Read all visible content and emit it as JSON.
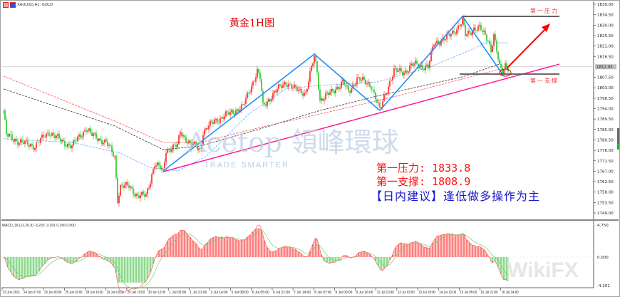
{
  "window": {
    "symbol_label": "XAUUSD,H1: GOLD"
  },
  "title": "黄金1H图",
  "annotations": {
    "resistance_label": "第一压力",
    "support_label": "第一支撑",
    "resistance_text": "第一压力: 1833.8",
    "support_text": "第一支撑: 1808.9",
    "advice_text": "【日内建议】逢低做多操作为主",
    "resistance_price": 1833.8,
    "support_price": 1808.9
  },
  "watermarks": {
    "brand": "Acetop 領峰環球",
    "tagline": "TRADE SMARTER",
    "wikifx": "WikiFX"
  },
  "colors": {
    "bull": "#ff0000",
    "bear": "#00c000",
    "zigzag": "#1e90ff",
    "trendline": "#ff1493",
    "arrow": "#ff0000",
    "ma_fast": "#6fa8ff",
    "ma_mid": "#333333",
    "ma_slow": "#ff5050"
  },
  "chart_data": [
    {
      "type": "candlestick",
      "title": "",
      "ylim": [
        1749.0,
        1839.0
      ],
      "y_ticks": [
        "1839.00",
        "1834.50",
        "1830.00",
        "1825.50",
        "1821.00",
        "1816.50",
        "1807.50",
        "1803.00",
        "1798.50",
        "1794.00",
        "1789.50",
        "1785.00",
        "1780.50",
        "1776.00",
        "1771.50",
        "1767.00",
        "1762.50",
        "1758.00",
        "1753.50",
        "1749.00"
      ],
      "current_price_label": "1812.05",
      "x_ticks": [
        "23 Jun 2021",
        "24 Jun 07:00",
        "25 Jun 00:00",
        "25 Jun 16:00",
        "28 Jun 10:00",
        "29 Jun 03:00",
        "29 Jun 19:00",
        "30 Jun 12:00",
        "1 Jul 05:00",
        "1 Jul 21:00",
        "2 Jul 14:00",
        "5 Jul 08:00",
        "6 Jul 05:00",
        "6 Jul 21:00",
        "7 Jul 14:00",
        "8 Jul 07:00",
        "9 Jul 00:00",
        "9 Jul 16:00",
        "12 Jul 10:00",
        "13 Jul 03:00",
        "13 Jul 19:00",
        "14 Jul 12:00",
        "15 Jul 05:00",
        "15 Jul 21:00",
        "16 Jul 14:00"
      ],
      "close_path": [
        [
          0,
          1793.2
        ],
        [
          1,
          1782.5
        ],
        [
          6,
          1779.4
        ],
        [
          11,
          1777.9
        ],
        [
          16,
          1784.0
        ],
        [
          21,
          1779.4
        ],
        [
          24,
          1777.9
        ],
        [
          29,
          1785.6
        ],
        [
          31,
          1782.5
        ],
        [
          36,
          1779.4
        ],
        [
          39,
          1773.3
        ],
        [
          40,
          1754.9
        ],
        [
          41,
          1760.5
        ],
        [
          44,
          1760.5
        ],
        [
          47,
          1756.4
        ],
        [
          50,
          1756.4
        ],
        [
          53,
          1770.2
        ],
        [
          56,
          1767.1
        ],
        [
          57,
          1776.3
        ],
        [
          61,
          1777.9
        ],
        [
          62,
          1784.0
        ],
        [
          65,
          1779.4
        ],
        [
          69,
          1776.3
        ],
        [
          70,
          1784.0
        ],
        [
          74,
          1788.6
        ],
        [
          79,
          1791.7
        ],
        [
          84,
          1794.8
        ],
        [
          89,
          1810.1
        ],
        [
          90,
          1807.1
        ],
        [
          91,
          1794.8
        ],
        [
          95,
          1800.9
        ],
        [
          99,
          1805.5
        ],
        [
          102,
          1802.5
        ],
        [
          106,
          1800.9
        ],
        [
          109,
          1816.3
        ],
        [
          110,
          1810.1
        ],
        [
          111,
          1797.8
        ],
        [
          115,
          1800.9
        ],
        [
          119,
          1805.5
        ],
        [
          121,
          1800.9
        ],
        [
          124,
          1807.1
        ],
        [
          129,
          1804.0
        ],
        [
          132,
          1793.2
        ],
        [
          134,
          1800.9
        ],
        [
          137,
          1810.1
        ],
        [
          141,
          1810.1
        ],
        [
          144,
          1813.2
        ],
        [
          149,
          1811.7
        ],
        [
          151,
          1822.4
        ],
        [
          155,
          1824.0
        ],
        [
          159,
          1828.6
        ],
        [
          161,
          1831.6
        ],
        [
          162,
          1825.5
        ],
        [
          165,
          1828.6
        ],
        [
          167,
          1828.6
        ],
        [
          170,
          1824.0
        ],
        [
          171,
          1819.3
        ],
        [
          172,
          1825.5
        ],
        [
          174,
          1811.7
        ],
        [
          175,
          1810.1
        ],
        [
          176,
          1813.2
        ],
        [
          177,
          1811.7
        ]
      ],
      "moving_averages": [
        {
          "color_key": "ma_fast",
          "points": [
            [
              0,
              1781.0
            ],
            [
              24,
              1779.4
            ],
            [
              41,
              1774.8
            ],
            [
              51,
              1768.7
            ],
            [
              61,
              1767.1
            ],
            [
              71,
              1773.3
            ],
            [
              86,
              1791.7
            ],
            [
              99,
              1802.5
            ],
            [
              111,
              1804.0
            ],
            [
              131,
              1805.5
            ],
            [
              149,
              1811.7
            ],
            [
              164,
              1819.3
            ],
            [
              169,
              1822.4
            ],
            [
              177,
              1822.4
            ]
          ]
        },
        {
          "color_key": "ma_mid",
          "points": [
            [
              0,
              1802.5
            ],
            [
              39,
              1786.5
            ],
            [
              56,
              1776.3
            ],
            [
              69,
              1777.9
            ],
            [
              89,
              1784.9
            ],
            [
              111,
              1793.2
            ],
            [
              131,
              1799.4
            ],
            [
              161,
              1807.7
            ],
            [
              174,
              1813.2
            ]
          ]
        },
        {
          "color_key": "ma_slow",
          "points": [
            [
              0,
              1808.0
            ],
            [
              39,
              1788.6
            ],
            [
              56,
              1779.4
            ],
            [
              69,
              1779.4
            ],
            [
              89,
              1785.6
            ],
            [
              111,
              1791.7
            ],
            [
              140,
              1800.0
            ],
            [
              174,
              1811.0
            ]
          ]
        }
      ],
      "zigzag": [
        [
          56,
          1767.1
        ],
        [
          109,
          1817.5
        ],
        [
          132,
          1793.2
        ],
        [
          161,
          1833.8
        ],
        [
          175,
          1808.9
        ]
      ],
      "trendline": [
        [
          56,
          1766.8
        ],
        [
          195,
          1813.2
        ]
      ]
    },
    {
      "type": "bar",
      "title": "MACD_DL(12,26,9) -3.203 -3.201 0.256 0.000",
      "ylim": [
        -4.201,
        4.75
      ],
      "y_ticks": [
        "4.750",
        "0.000",
        "-4.201"
      ]
    }
  ]
}
